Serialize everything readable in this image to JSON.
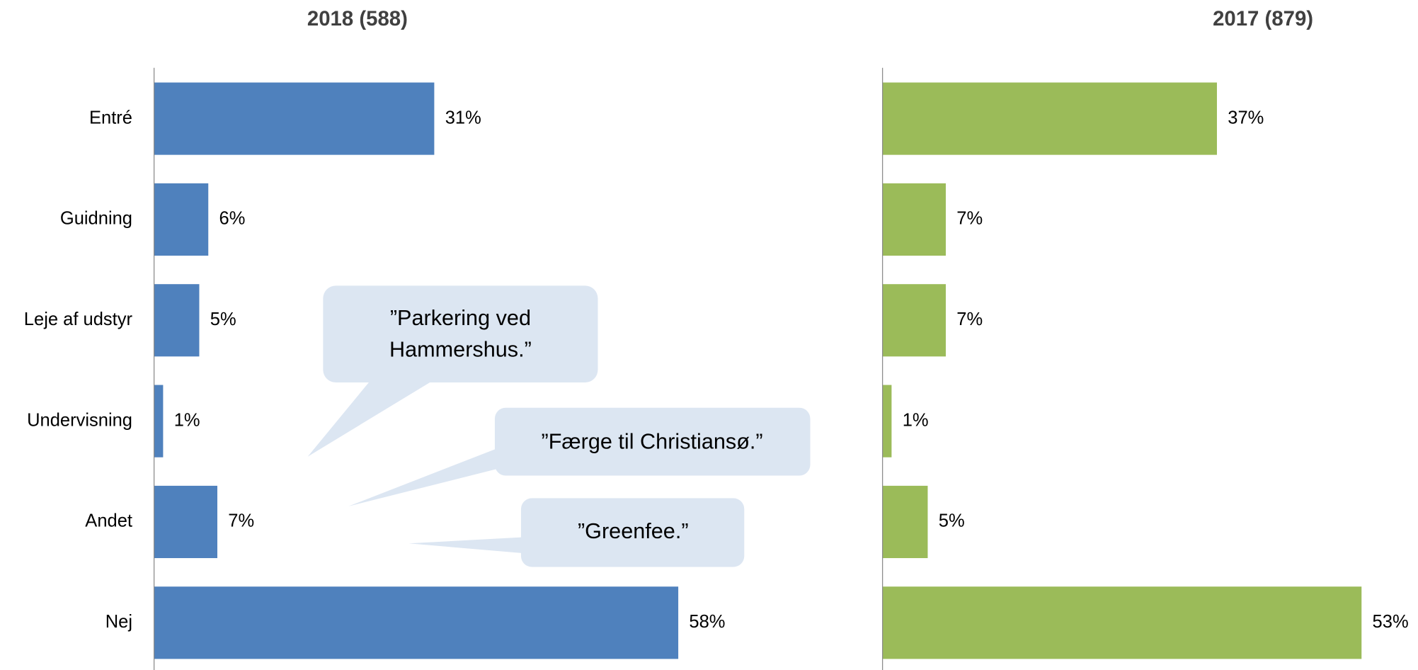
{
  "chart_data": [
    {
      "type": "bar",
      "orientation": "horizontal",
      "title": "2018 (588)",
      "categories": [
        "Entré",
        "Guidning",
        "Leje af udstyr",
        "Undervisning",
        "Andet",
        "Nej"
      ],
      "values": [
        31,
        6,
        5,
        1,
        7,
        58
      ],
      "value_labels": [
        "31%",
        "6%",
        "5%",
        "1%",
        "7%",
        "58%"
      ],
      "color": "#4f81bd",
      "xlim": [
        0,
        60
      ],
      "annotations": [
        {
          "lines": [
            "”Parkering ved",
            "Hammershus.”"
          ]
        },
        {
          "lines": [
            "”Færge til Christiansø.”"
          ]
        },
        {
          "lines": [
            "”Greenfee.”"
          ]
        }
      ]
    },
    {
      "type": "bar",
      "orientation": "horizontal",
      "title": "2017 (879)",
      "values": [
        37,
        7,
        7,
        1,
        5,
        53
      ],
      "value_labels": [
        "37%",
        "7%",
        "7%",
        "1%",
        "5%",
        "53%"
      ],
      "color": "#9bbb59",
      "xlim": [
        0,
        60
      ]
    }
  ]
}
